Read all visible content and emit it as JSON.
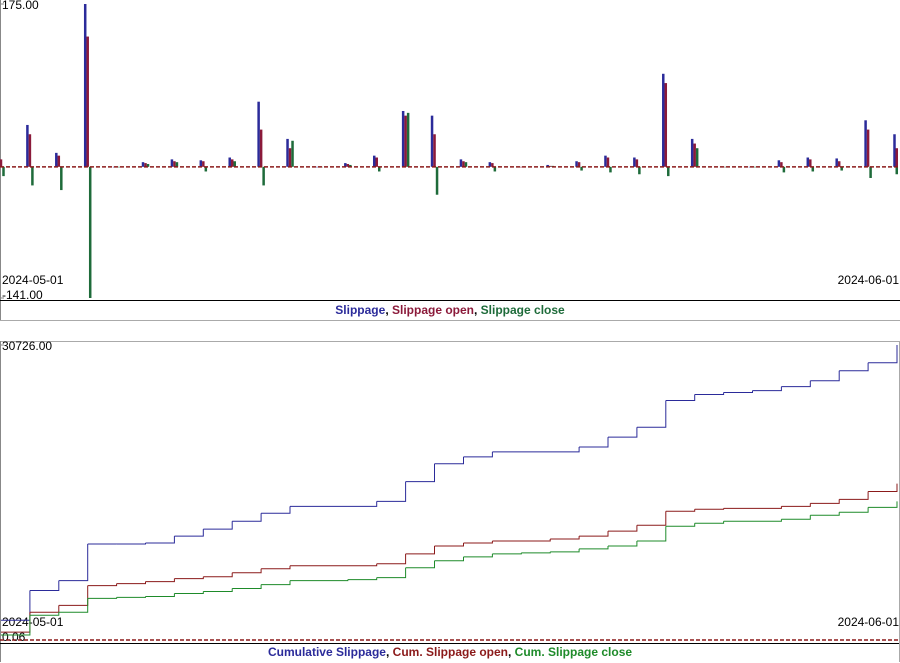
{
  "chart_data": [
    {
      "type": "bar",
      "x": [
        "2024-05-01",
        "2024-05-02",
        "2024-05-03",
        "2024-05-04",
        "2024-05-05",
        "2024-05-06",
        "2024-05-07",
        "2024-05-08",
        "2024-05-09",
        "2024-05-10",
        "2024-05-11",
        "2024-05-12",
        "2024-05-13",
        "2024-05-14",
        "2024-05-15",
        "2024-05-16",
        "2024-05-17",
        "2024-05-18",
        "2024-05-19",
        "2024-05-20",
        "2024-05-21",
        "2024-05-22",
        "2024-05-23",
        "2024-05-24",
        "2024-05-25",
        "2024-05-26",
        "2024-05-27",
        "2024-05-28",
        "2024-05-29",
        "2024-05-30",
        "2024-05-31",
        "2024-06-01"
      ],
      "xlim": [
        "2024-05-01",
        "2024-06-01"
      ],
      "xticks": [
        "2024-05-01",
        "2024-06-01"
      ],
      "ylim": [
        -141,
        175
      ],
      "yticks": [
        {
          "value": 175,
          "label": "175.00"
        },
        {
          "value": -141,
          "label": "-141.00"
        }
      ],
      "baseline_color": "#8b1a1a",
      "legend_separator": ", ",
      "series": [
        {
          "name": "Slippage",
          "color": "#2b2b9a",
          "values": [
            10,
            45,
            15,
            175,
            0,
            5,
            8,
            7,
            10,
            70,
            30,
            0,
            4,
            12,
            60,
            55,
            8,
            5,
            0,
            2,
            6,
            12,
            10,
            100,
            30,
            0,
            0,
            7,
            10,
            9,
            50,
            35
          ]
        },
        {
          "name": "Slippage open",
          "color": "#8b1a3a",
          "values": [
            8,
            35,
            12,
            140,
            0,
            4,
            6,
            6,
            8,
            40,
            20,
            0,
            3,
            10,
            55,
            35,
            6,
            4,
            0,
            1,
            5,
            10,
            8,
            90,
            25,
            0,
            0,
            5,
            8,
            6,
            40,
            20
          ]
        },
        {
          "name": "Slippage close",
          "color": "#1e6b3a",
          "values": [
            -10,
            -20,
            -25,
            -141,
            0,
            3,
            5,
            -5,
            6,
            -20,
            28,
            0,
            2,
            -5,
            58,
            -30,
            5,
            -5,
            0,
            1,
            -4,
            -6,
            -8,
            -10,
            20,
            0,
            0,
            -6,
            -5,
            -4,
            -12,
            -8
          ]
        }
      ]
    },
    {
      "type": "line",
      "x": [
        "2024-05-01",
        "2024-05-02",
        "2024-05-03",
        "2024-05-04",
        "2024-05-05",
        "2024-05-06",
        "2024-05-07",
        "2024-05-08",
        "2024-05-09",
        "2024-05-10",
        "2024-05-11",
        "2024-05-12",
        "2024-05-13",
        "2024-05-14",
        "2024-05-15",
        "2024-05-16",
        "2024-05-17",
        "2024-05-18",
        "2024-05-19",
        "2024-05-20",
        "2024-05-21",
        "2024-05-22",
        "2024-05-23",
        "2024-05-24",
        "2024-05-25",
        "2024-05-26",
        "2024-05-27",
        "2024-05-28",
        "2024-05-29",
        "2024-05-30",
        "2024-05-31",
        "2024-06-01"
      ],
      "xlim": [
        "2024-05-01",
        "2024-06-01"
      ],
      "xticks": [
        "2024-05-01",
        "2024-06-01"
      ],
      "ylim": [
        0.06,
        30726
      ],
      "yticks": [
        {
          "value": 30726,
          "label": "30726.00"
        },
        {
          "value": 0.06,
          "label": "0.06"
        }
      ],
      "baseline_color": "#8b1a1a",
      "legend_separator": ", ",
      "series": [
        {
          "name": "Cumulative Slippage",
          "color": "#2b2b9a",
          "values": [
            2062,
            5156,
            6187,
            10001,
            10001,
            10104,
            10826,
            11547,
            12373,
            13197,
            13919,
            13919,
            13919,
            14434,
            16496,
            18352,
            19074,
            19589,
            19589,
            19589,
            20105,
            21136,
            22167,
            24950,
            25569,
            25775,
            25981,
            26394,
            27012,
            28043,
            28868,
            30726
          ]
        },
        {
          "name": "Cum. Slippage open",
          "color": "#8b1a1a",
          "values": [
            825,
            2887,
            3609,
            5671,
            5877,
            6083,
            6392,
            6598,
            7011,
            7423,
            7733,
            7733,
            7733,
            7939,
            8970,
            9795,
            10104,
            10310,
            10310,
            10516,
            10826,
            11341,
            11960,
            13403,
            13609,
            13712,
            13712,
            13919,
            14228,
            14640,
            15465,
            16290
          ]
        },
        {
          "name": "Cum. Slippage close",
          "color": "#1e8b2a",
          "values": [
            516,
            2578,
            2887,
            4330,
            4433,
            4536,
            4846,
            5052,
            5361,
            5774,
            6186,
            6186,
            6289,
            6495,
            7526,
            8248,
            8660,
            8970,
            9073,
            9176,
            9485,
            9795,
            10310,
            11857,
            12166,
            12372,
            12372,
            12578,
            12991,
            13300,
            13815,
            14434
          ]
        }
      ]
    }
  ]
}
